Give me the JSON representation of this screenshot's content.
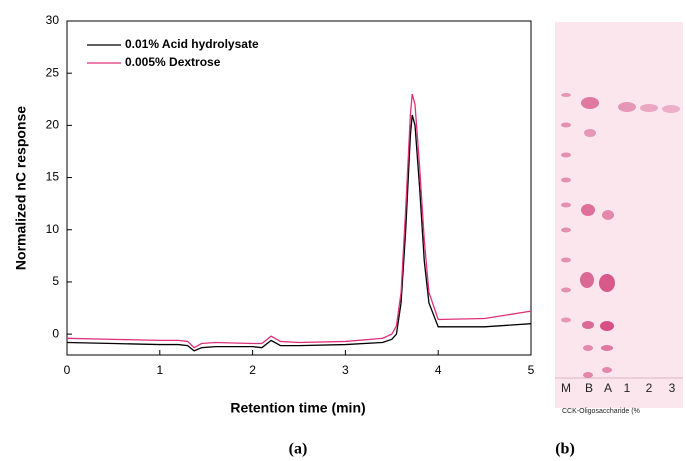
{
  "chart_data": {
    "type": "line",
    "xlabel": "Retention time (min)",
    "ylabel": "Normalized nC response",
    "x": [
      0,
      0.5,
      1,
      1.2,
      1.3,
      1.37,
      1.45,
      1.6,
      2,
      2.1,
      2.2,
      2.3,
      2.5,
      3,
      3.4,
      3.5,
      3.55,
      3.6,
      3.65,
      3.7,
      3.72,
      3.75,
      3.8,
      3.85,
      3.9,
      4,
      4.5,
      5
    ],
    "series": [
      {
        "name": "0.01% Acid hydrolysate",
        "color": "#000000",
        "values": [
          -0.8,
          -0.9,
          -1.0,
          -1.0,
          -1.1,
          -1.6,
          -1.3,
          -1.2,
          -1.2,
          -1.3,
          -0.6,
          -1.1,
          -1.1,
          -1.0,
          -0.8,
          -0.5,
          0,
          3,
          10,
          19,
          21,
          20,
          14,
          7,
          3,
          0.7,
          0.7,
          1.0
        ]
      },
      {
        "name": "0.005% Dextrose",
        "color": "#e0307a",
        "values": [
          -0.4,
          -0.5,
          -0.6,
          -0.6,
          -0.7,
          -1.3,
          -0.9,
          -0.8,
          -0.9,
          -0.9,
          -0.2,
          -0.7,
          -0.8,
          -0.7,
          -0.4,
          0,
          0.8,
          4,
          12,
          21,
          23,
          22,
          16,
          9,
          4,
          1.4,
          1.5,
          2.2
        ]
      }
    ],
    "xlim": [
      0,
      5
    ],
    "xticks": [
      0,
      1,
      2,
      3,
      4,
      5
    ],
    "ylim": [
      -2,
      30
    ],
    "yticks": [
      0,
      5,
      10,
      15,
      20,
      25,
      30
    ],
    "legend": "upper left"
  },
  "plate": {
    "lanes": [
      "M",
      "B",
      "A",
      "1",
      "2",
      "3"
    ],
    "axis_label": "CCK-Oligosaccharide (%"
  },
  "captions": [
    "(a)",
    "(b)"
  ]
}
